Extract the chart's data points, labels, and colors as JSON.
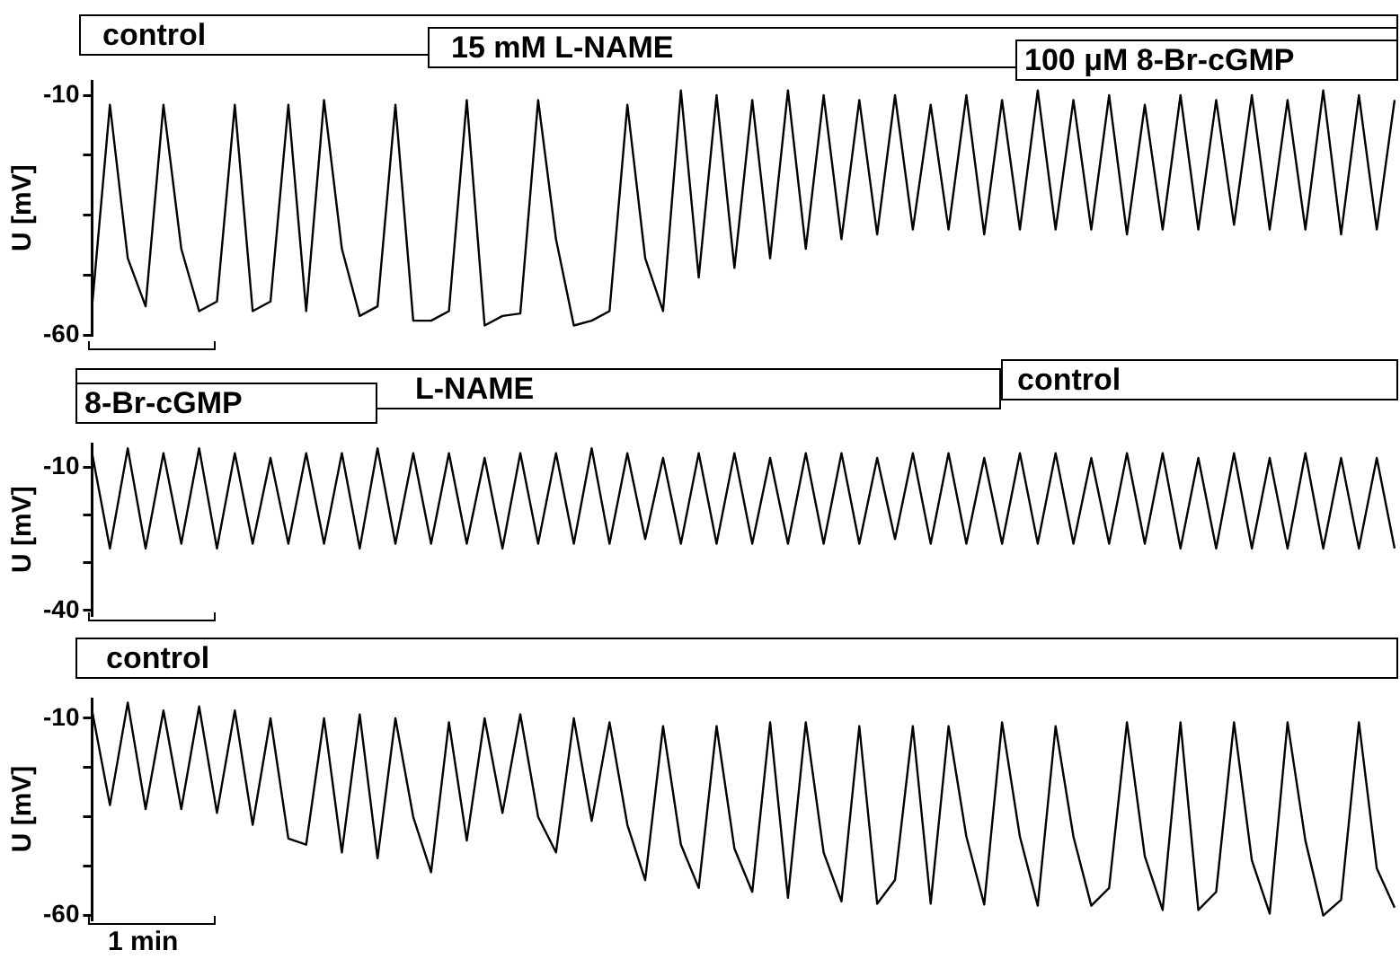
{
  "chart_data": [
    {
      "type": "line",
      "ylabel": "U [mV]",
      "ylim": [
        -60,
        -7
      ],
      "yticks": [
        -10,
        {
          "value": -22.5,
          "label": null
        },
        {
          "value": -35,
          "label": null
        },
        {
          "value": -47.5,
          "label": null
        },
        -60
      ],
      "tick_labels": "y",
      "annotations": [
        "control",
        "15 mM L-NAME",
        "100 μM 8-Br-cGMP"
      ],
      "categories": [
        null,
        null,
        null,
        null,
        null,
        null,
        null,
        null,
        null,
        null,
        null,
        null,
        null,
        null,
        null,
        null,
        null,
        null,
        null,
        null,
        null,
        null,
        null,
        null,
        null,
        null,
        null,
        null,
        null,
        null,
        null,
        null,
        null,
        null,
        null,
        null,
        null,
        null,
        null,
        null,
        null,
        null,
        null,
        null,
        null,
        null,
        null,
        null,
        null,
        null,
        null,
        null,
        null,
        null,
        null,
        null,
        null,
        null,
        null,
        null,
        null,
        null,
        null,
        null,
        null,
        null,
        null,
        null,
        null,
        null,
        null,
        null,
        null,
        null
      ],
      "series": [
        {
          "color": "#000000",
          "values": [
            -54,
            -12,
            -44,
            -54,
            -12,
            -42,
            -55,
            -53,
            -12,
            -55,
            -53,
            -12,
            -55,
            -11,
            -42,
            -56,
            -54,
            -12,
            -57,
            -57,
            -55,
            -11,
            -58,
            -56,
            -55.5,
            -11,
            -40,
            -58,
            -57,
            -55,
            -12,
            -44,
            -55,
            -9,
            -48,
            -10,
            -46,
            -11,
            -44,
            -9,
            -42,
            -10,
            -40,
            -11,
            -39,
            -10,
            -38,
            -12,
            -38,
            -10,
            -39,
            -11,
            -38,
            -9,
            -38,
            -11,
            -38,
            -10,
            -39,
            -12,
            -38,
            -10,
            -38,
            -11,
            -37,
            -10,
            -38,
            -11,
            -38,
            -9,
            -39,
            -10,
            -38,
            -11
          ]
        }
      ]
    },
    {
      "type": "line",
      "ylabel": "U [mV]",
      "ylim": [
        -41,
        -5
      ],
      "yticks": [
        -10,
        {
          "value": -20,
          "label": null
        },
        {
          "value": -30,
          "label": null
        },
        -40
      ],
      "tick_labels": "y",
      "annotations": [
        "L-NAME",
        "control",
        "8-Br-cGMP"
      ],
      "categories": [
        null,
        null,
        null,
        null,
        null,
        null,
        null,
        null,
        null,
        null,
        null,
        null,
        null,
        null,
        null,
        null,
        null,
        null,
        null,
        null,
        null,
        null,
        null,
        null,
        null,
        null,
        null,
        null,
        null,
        null,
        null,
        null,
        null,
        null,
        null,
        null,
        null,
        null,
        null,
        null,
        null,
        null,
        null,
        null,
        null,
        null,
        null,
        null,
        null,
        null,
        null,
        null,
        null,
        null,
        null,
        null,
        null,
        null,
        null,
        null,
        null,
        null,
        null,
        null,
        null,
        null,
        null,
        null,
        null,
        null,
        null,
        null,
        null,
        null
      ],
      "series": [
        {
          "color": "#000000",
          "values": [
            -7,
            -27,
            -6,
            -27,
            -7,
            -26,
            -6,
            -27,
            -7,
            -26,
            -8,
            -26,
            -7,
            -26,
            -7,
            -27,
            -6,
            -26,
            -7,
            -26,
            -7,
            -26,
            -8,
            -27,
            -7,
            -26,
            -7,
            -26,
            -6,
            -26,
            -7,
            -25,
            -8,
            -26,
            -7,
            -26,
            -7,
            -26,
            -8,
            -26,
            -7,
            -26,
            -7,
            -26,
            -8,
            -25,
            -7,
            -26,
            -7,
            -26,
            -8,
            -26,
            -7,
            -26,
            -7,
            -26,
            -8,
            -26,
            -7,
            -26,
            -7,
            -27,
            -8,
            -27,
            -7,
            -27,
            -8,
            -27,
            -7,
            -27,
            -8,
            -27,
            -8,
            -27
          ]
        }
      ]
    },
    {
      "type": "line",
      "ylabel": "U [mV]",
      "ylim": [
        -61,
        -5
      ],
      "yticks": [
        -10,
        {
          "value": -22.5,
          "label": null
        },
        {
          "value": -35,
          "label": null
        },
        {
          "value": -47.5,
          "label": null
        },
        -60
      ],
      "tick_labels": "y",
      "annotations": [
        "control",
        "1 min"
      ],
      "categories": [
        null,
        null,
        null,
        null,
        null,
        null,
        null,
        null,
        null,
        null,
        null,
        null,
        null,
        null,
        null,
        null,
        null,
        null,
        null,
        null,
        null,
        null,
        null,
        null,
        null,
        null,
        null,
        null,
        null,
        null,
        null,
        null,
        null,
        null,
        null,
        null,
        null,
        null,
        null,
        null,
        null,
        null,
        null,
        null,
        null,
        null,
        null,
        null,
        null,
        null,
        null,
        null,
        null,
        null,
        null,
        null,
        null,
        null,
        null,
        null,
        null,
        null,
        null,
        null,
        null,
        null,
        null,
        null,
        null,
        null,
        null,
        null,
        null,
        null
      ],
      "series": [
        {
          "color": "#000000",
          "values": [
            -8,
            -32,
            -6,
            -33,
            -8,
            -33,
            -7,
            -34,
            -8,
            -37,
            -10,
            -40.5,
            -42,
            -10,
            -44,
            -9,
            -45.5,
            -10,
            -35,
            -49,
            -11,
            -41,
            -10,
            -34,
            -9,
            -35,
            -44,
            -10,
            -36,
            -11,
            -37,
            -51,
            -12,
            -42,
            -53,
            -12,
            -43,
            -54,
            -11,
            -55.5,
            -11,
            -44,
            -56.4,
            -12,
            -57,
            -51,
            -12,
            -57,
            -12,
            -40,
            -57.2,
            -11,
            -40,
            -57.5,
            -12,
            -40,
            -57.5,
            -53,
            -11,
            -45,
            -58.6,
            -11,
            -58.6,
            -54,
            -11,
            -46,
            -59.5,
            -11,
            -41,
            -60,
            -56,
            -11,
            -48,
            -58
          ]
        }
      ]
    }
  ]
}
